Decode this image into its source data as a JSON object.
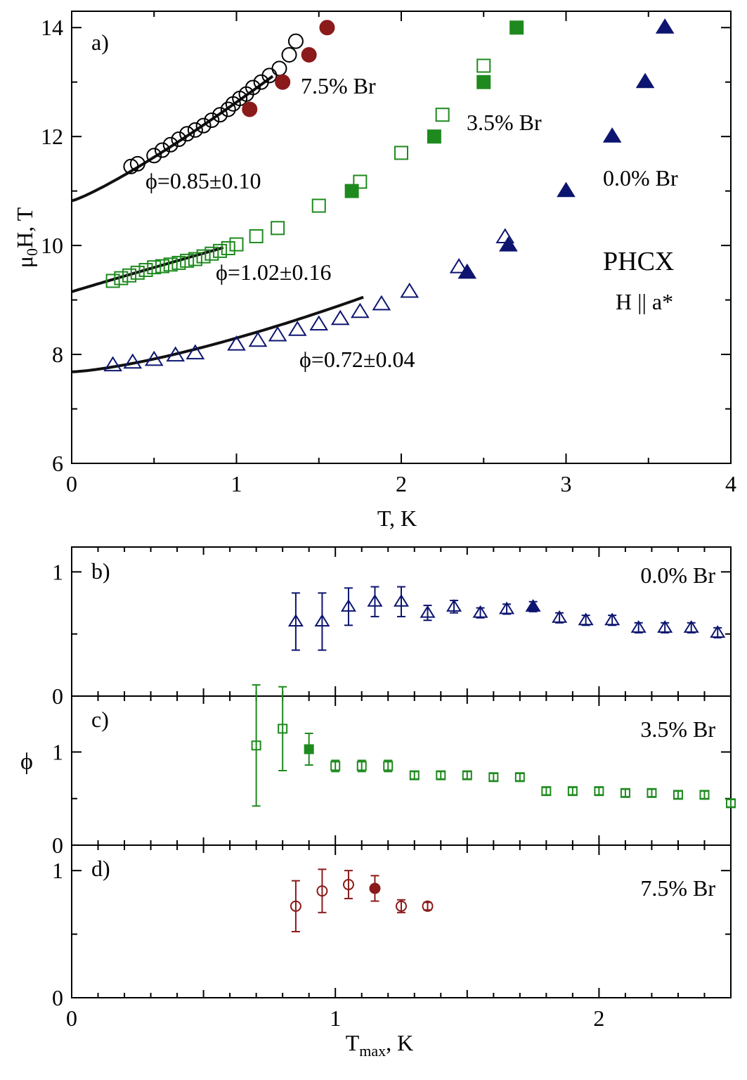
{
  "colors": {
    "dark_red": "#8B1A1A",
    "green": "#1E8A1E",
    "navy": "#0D1570",
    "black": "#000000"
  },
  "chart_data": [
    {
      "id": "a",
      "type": "scatter",
      "panel_label": "a)",
      "xlabel_main": "T, K",
      "ylabel_parts": [
        "μ",
        "0",
        "H, T"
      ],
      "xlim": [
        0,
        4
      ],
      "ylim": [
        6,
        14.3
      ],
      "xticks": [
        0,
        1,
        2,
        3,
        4
      ],
      "yticks": [
        6,
        8,
        10,
        12,
        14
      ],
      "xtick_labels": [
        "0",
        "1",
        "2",
        "3",
        "4"
      ],
      "ytick_labels": [
        "6",
        "8",
        "10",
        "12",
        "14"
      ],
      "annotations": {
        "compound": "PHCX",
        "field": "H || a*",
        "label_75": "7.5% Br",
        "label_35": "3.5% Br",
        "label_00": "0.0% Br",
        "phi_75": "ϕ=0.85±0.10",
        "phi_35": "ϕ=1.02±0.16",
        "phi_00": "ϕ=0.72±0.04"
      },
      "series": [
        {
          "name": "7.5% Br open",
          "marker": "circle",
          "filled": false,
          "color": "#000000",
          "x": [
            0.36,
            0.4,
            0.5,
            0.55,
            0.6,
            0.65,
            0.7,
            0.75,
            0.8,
            0.85,
            0.9,
            0.95,
            0.98,
            1.02,
            1.06,
            1.1,
            1.15,
            1.2,
            1.26,
            1.32,
            1.36
          ],
          "y": [
            11.45,
            11.5,
            11.65,
            11.75,
            11.85,
            11.95,
            12.05,
            12.12,
            12.2,
            12.3,
            12.4,
            12.5,
            12.6,
            12.7,
            12.78,
            12.9,
            13.0,
            13.12,
            13.25,
            13.5,
            13.75
          ]
        },
        {
          "name": "7.5% Br filled",
          "marker": "circle",
          "filled": true,
          "color": "#8B1A1A",
          "x": [
            1.08,
            1.28,
            1.44,
            1.55
          ],
          "y": [
            12.5,
            13.0,
            13.5,
            14.0
          ]
        },
        {
          "name": "3.5% Br open",
          "marker": "square",
          "filled": false,
          "color": "#1E8A1E",
          "x": [
            0.25,
            0.3,
            0.35,
            0.4,
            0.45,
            0.5,
            0.55,
            0.6,
            0.65,
            0.7,
            0.75,
            0.8,
            0.85,
            0.9,
            0.95,
            1.0,
            1.12,
            1.25,
            1.5,
            1.75,
            2.0,
            2.25,
            2.5
          ],
          "y": [
            9.35,
            9.4,
            9.45,
            9.5,
            9.55,
            9.6,
            9.62,
            9.65,
            9.68,
            9.72,
            9.75,
            9.8,
            9.85,
            9.9,
            9.95,
            10.02,
            10.17,
            10.32,
            10.73,
            11.17,
            11.7,
            12.4,
            13.3
          ]
        },
        {
          "name": "3.5% Br filled",
          "marker": "square",
          "filled": true,
          "color": "#1E8A1E",
          "x": [
            1.7,
            2.2,
            2.5,
            2.7
          ],
          "y": [
            11.0,
            12.0,
            13.0,
            14.0
          ]
        },
        {
          "name": "0.0% Br open",
          "marker": "triangle",
          "filled": false,
          "color": "#0D1570",
          "x": [
            0.25,
            0.37,
            0.5,
            0.63,
            0.75,
            1.0,
            1.13,
            1.25,
            1.37,
            1.5,
            1.63,
            1.75,
            1.88,
            2.05,
            2.35,
            2.63
          ],
          "y": [
            7.8,
            7.85,
            7.9,
            7.98,
            8.02,
            8.18,
            8.25,
            8.35,
            8.45,
            8.55,
            8.65,
            8.78,
            8.92,
            9.15,
            9.6,
            10.15
          ]
        },
        {
          "name": "0.0% Br filled",
          "marker": "triangle",
          "filled": true,
          "color": "#0D1570",
          "x": [
            2.4,
            2.65,
            3.0,
            3.28,
            3.48,
            3.6
          ],
          "y": [
            9.5,
            10.0,
            11.0,
            12.0,
            13.0,
            14.0
          ]
        }
      ],
      "fits": [
        {
          "name": "fit 7.5% Br",
          "tc": 10.82,
          "a": 1.81,
          "phi": 0.85,
          "xrange": [
            0,
            1.22
          ]
        },
        {
          "name": "fit 3.5% Br",
          "tc": 9.15,
          "a": 0.88,
          "phi": 1.02,
          "xrange": [
            0,
            0.92
          ]
        },
        {
          "name": "fit 0.0% Br",
          "tc": 7.68,
          "a": 0.62,
          "phi": 0.72,
          "xrange": [
            0,
            1.77
          ]
        }
      ]
    },
    {
      "id": "b",
      "type": "scatter",
      "panel_label": "b)",
      "legend": "0.0% Br",
      "xlim": [
        0,
        2.5
      ],
      "ylim": [
        0,
        1.2
      ],
      "yticks": [
        0,
        1
      ],
      "ytick_labels": [
        "0",
        "1"
      ],
      "series": [
        {
          "name": "0.0% Br",
          "marker": "triangle",
          "color": "#0D1570",
          "x": [
            0.85,
            0.95,
            1.05,
            1.15,
            1.25,
            1.35,
            1.45,
            1.55,
            1.65,
            1.75,
            1.85,
            1.95,
            2.05,
            2.15,
            2.25,
            2.35,
            2.45
          ],
          "y": [
            0.6,
            0.6,
            0.72,
            0.76,
            0.76,
            0.67,
            0.72,
            0.67,
            0.7,
            0.72,
            0.63,
            0.61,
            0.61,
            0.55,
            0.55,
            0.55,
            0.51
          ],
          "err": [
            0.23,
            0.23,
            0.15,
            0.12,
            0.12,
            0.06,
            0.05,
            0.04,
            0.04,
            0.04,
            0.04,
            0.04,
            0.04,
            0.04,
            0.04,
            0.04,
            0.04
          ],
          "filled": [
            false,
            false,
            false,
            false,
            false,
            false,
            false,
            false,
            false,
            true,
            false,
            false,
            false,
            false,
            false,
            false,
            false
          ]
        }
      ]
    },
    {
      "id": "c",
      "type": "scatter",
      "panel_label": "c)",
      "legend": "3.5% Br",
      "ylabel": "ϕ",
      "xlim": [
        0,
        2.5
      ],
      "ylim": [
        0,
        1.6
      ],
      "yticks": [
        0,
        1
      ],
      "ytick_labels": [
        "0",
        "1"
      ],
      "series": [
        {
          "name": "3.5% Br",
          "marker": "square",
          "color": "#1E8A1E",
          "x": [
            0.7,
            0.8,
            0.9,
            1.0,
            1.1,
            1.2,
            1.3,
            1.4,
            1.5,
            1.6,
            1.7,
            1.8,
            1.9,
            2.0,
            2.1,
            2.2,
            2.3,
            2.4,
            2.5
          ],
          "y": [
            1.07,
            1.25,
            1.03,
            0.85,
            0.85,
            0.85,
            0.75,
            0.75,
            0.75,
            0.73,
            0.73,
            0.58,
            0.58,
            0.58,
            0.56,
            0.56,
            0.54,
            0.54,
            0.45
          ],
          "err": [
            0.65,
            0.45,
            0.17,
            0.06,
            0.06,
            0.06,
            0.04,
            0.04,
            0.04,
            0.04,
            0.04,
            0.04,
            0.04,
            0.04,
            0.04,
            0.04,
            0.04,
            0.04,
            0.04
          ],
          "filled": [
            false,
            false,
            true,
            false,
            false,
            false,
            false,
            false,
            false,
            false,
            false,
            false,
            false,
            false,
            false,
            false,
            false,
            false,
            false
          ]
        }
      ]
    },
    {
      "id": "d",
      "type": "scatter",
      "panel_label": "d)",
      "legend": "7.5% Br",
      "xlabel_parts": [
        "T",
        "max",
        ", K"
      ],
      "xlim": [
        0,
        2.5
      ],
      "ylim": [
        0,
        1.2
      ],
      "yticks": [
        0,
        1
      ],
      "ytick_labels": [
        "0",
        "1"
      ],
      "xticks": [
        0,
        1,
        2
      ],
      "xtick_labels": [
        "0",
        "1",
        "2"
      ],
      "series": [
        {
          "name": "7.5% Br",
          "marker": "circle",
          "color": "#8B1A1A",
          "x": [
            0.85,
            0.95,
            1.05,
            1.15,
            1.25,
            1.35
          ],
          "y": [
            0.72,
            0.84,
            0.89,
            0.86,
            0.72,
            0.72
          ],
          "err": [
            0.2,
            0.17,
            0.11,
            0.1,
            0.05,
            0.03
          ],
          "filled": [
            false,
            false,
            false,
            true,
            false,
            false
          ]
        }
      ]
    }
  ]
}
